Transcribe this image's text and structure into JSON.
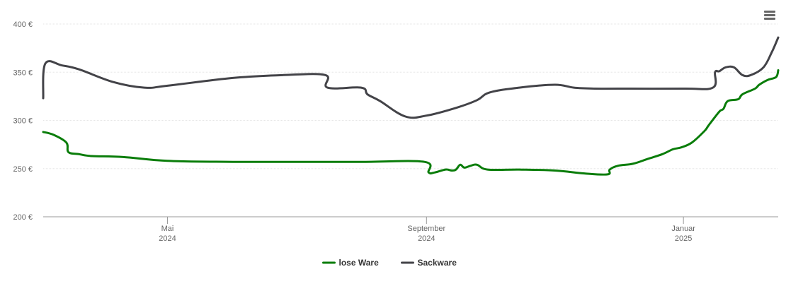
{
  "chart_data": {
    "type": "line",
    "title": "",
    "xlabel": "",
    "ylabel": "",
    "ylim": [
      200,
      400
    ],
    "yticks": [
      {
        "value": 200,
        "label": "200 €"
      },
      {
        "value": 250,
        "label": "250 €"
      },
      {
        "value": 300,
        "label": "300 €"
      },
      {
        "value": 350,
        "label": "350 €"
      },
      {
        "value": 400,
        "label": "400 €"
      }
    ],
    "xlim": [
      "2024-03-03",
      "2025-02-15"
    ],
    "xticks": [
      {
        "date": "2024-05-01",
        "month": "Mai",
        "year": "2024"
      },
      {
        "date": "2024-09-01",
        "month": "September",
        "year": "2024"
      },
      {
        "date": "2025-01-01",
        "month": "Januar",
        "year": "2025"
      }
    ],
    "grid": true,
    "legend_position": "bottom-center",
    "series": [
      {
        "name": "lose Ware",
        "color": "#0a7d0a",
        "points": [
          [
            "2024-03-03",
            288
          ],
          [
            "2024-03-08",
            285
          ],
          [
            "2024-03-14",
            277
          ],
          [
            "2024-03-15",
            267
          ],
          [
            "2024-03-20",
            265
          ],
          [
            "2024-03-26",
            263
          ],
          [
            "2024-04-10",
            262
          ],
          [
            "2024-05-01",
            258
          ],
          [
            "2024-06-01",
            257
          ],
          [
            "2024-07-01",
            257
          ],
          [
            "2024-08-01",
            257
          ],
          [
            "2024-08-31",
            257
          ],
          [
            "2024-09-02",
            246
          ],
          [
            "2024-09-05",
            246
          ],
          [
            "2024-09-10",
            249
          ],
          [
            "2024-09-13",
            248
          ],
          [
            "2024-09-15",
            249
          ],
          [
            "2024-09-17",
            254
          ],
          [
            "2024-09-19",
            251
          ],
          [
            "2024-09-22",
            253
          ],
          [
            "2024-09-25",
            254
          ],
          [
            "2024-09-30",
            249
          ],
          [
            "2024-10-15",
            249
          ],
          [
            "2024-11-01",
            248
          ],
          [
            "2024-11-15",
            245
          ],
          [
            "2024-11-26",
            244
          ],
          [
            "2024-11-27",
            249
          ],
          [
            "2024-12-01",
            253
          ],
          [
            "2024-12-08",
            255
          ],
          [
            "2024-12-15",
            260
          ],
          [
            "2024-12-22",
            265
          ],
          [
            "2024-12-27",
            270
          ],
          [
            "2024-12-31",
            272
          ],
          [
            "2025-01-05",
            277
          ],
          [
            "2025-01-11",
            289
          ],
          [
            "2025-01-13",
            295
          ],
          [
            "2025-01-18",
            309
          ],
          [
            "2025-01-20",
            312
          ],
          [
            "2025-01-22",
            320
          ],
          [
            "2025-01-27",
            322
          ],
          [
            "2025-01-29",
            327
          ],
          [
            "2025-02-04",
            333
          ],
          [
            "2025-02-06",
            337
          ],
          [
            "2025-02-10",
            342
          ],
          [
            "2025-02-14",
            345
          ],
          [
            "2025-02-15",
            352
          ]
        ]
      },
      {
        "name": "Sackware",
        "color": "#434348",
        "points": [
          [
            "2024-03-03",
            323
          ],
          [
            "2024-03-04",
            359
          ],
          [
            "2024-03-12",
            357
          ],
          [
            "2024-03-20",
            353
          ],
          [
            "2024-04-05",
            340
          ],
          [
            "2024-04-20",
            334
          ],
          [
            "2024-05-01",
            336
          ],
          [
            "2024-06-01",
            344
          ],
          [
            "2024-06-25",
            347
          ],
          [
            "2024-07-15",
            347
          ],
          [
            "2024-07-16",
            334
          ],
          [
            "2024-08-01",
            334
          ],
          [
            "2024-08-04",
            327
          ],
          [
            "2024-08-10",
            320
          ],
          [
            "2024-08-22",
            304
          ],
          [
            "2024-09-01",
            305
          ],
          [
            "2024-09-15",
            313
          ],
          [
            "2024-09-25",
            321
          ],
          [
            "2024-10-01",
            329
          ],
          [
            "2024-10-15",
            334
          ],
          [
            "2024-11-01",
            337
          ],
          [
            "2024-11-10",
            334
          ],
          [
            "2024-11-20",
            333
          ],
          [
            "2024-12-01",
            333
          ],
          [
            "2025-01-01",
            333
          ],
          [
            "2025-01-15",
            334
          ],
          [
            "2025-01-16",
            350
          ],
          [
            "2025-01-18",
            351
          ],
          [
            "2025-01-21",
            355
          ],
          [
            "2025-01-25",
            355
          ],
          [
            "2025-01-29",
            347
          ],
          [
            "2025-02-02",
            347
          ],
          [
            "2025-02-08",
            355
          ],
          [
            "2025-02-12",
            371
          ],
          [
            "2025-02-15",
            386
          ]
        ]
      }
    ]
  },
  "menu": {
    "icon": "hamburger-menu-icon"
  }
}
